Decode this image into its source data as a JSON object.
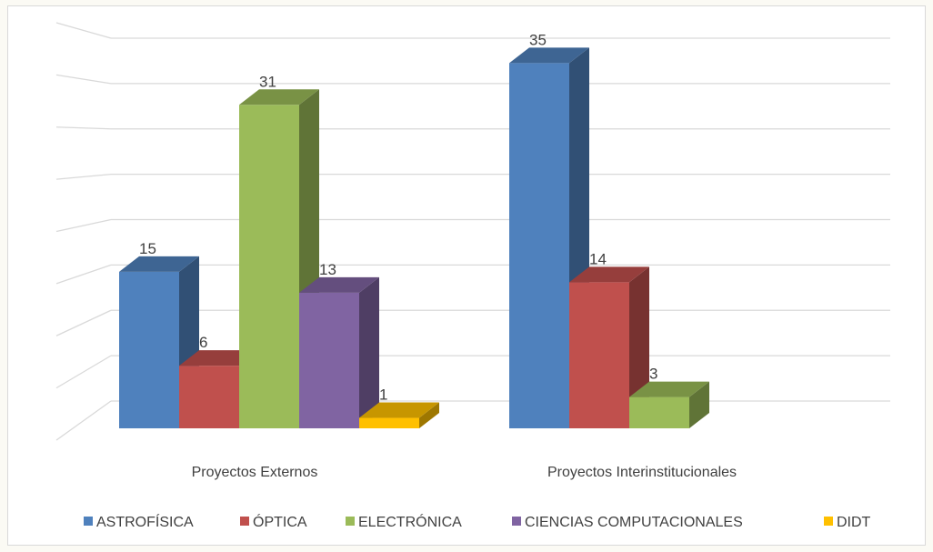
{
  "chart_data": {
    "type": "bar",
    "style": "3d-clustered-column",
    "categories": [
      "Proyectos Externos",
      "Proyectos Interinstitucionales"
    ],
    "series": [
      {
        "name": "ASTROFÍSICA",
        "values": [
          15,
          35
        ],
        "color": "#4f81bd"
      },
      {
        "name": "ÓPTICA",
        "values": [
          6,
          14
        ],
        "color": "#c0504d"
      },
      {
        "name": "ELECTRÓNICA",
        "values": [
          31,
          3
        ],
        "color": "#9bbb59"
      },
      {
        "name": "CIENCIAS COMPUTACIONALES",
        "values": [
          13,
          null
        ],
        "color": "#8064a2"
      },
      {
        "name": "DIDT",
        "values": [
          1,
          null
        ],
        "color": "#ffc000"
      }
    ],
    "ylim": [
      0,
      40
    ],
    "gridlines": true,
    "y_axis_labels_shown": false,
    "data_labels": true,
    "legend_position": "bottom"
  }
}
